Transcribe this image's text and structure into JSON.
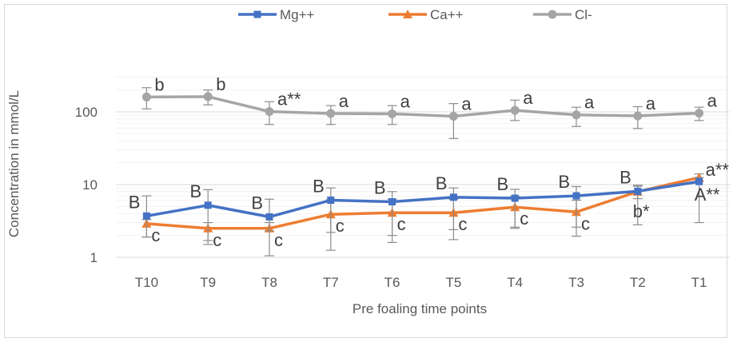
{
  "chart_data": {
    "type": "line",
    "yscale": "log",
    "ylim": [
      1,
      300
    ],
    "yticks": [
      "1",
      "10",
      "100"
    ],
    "ylabel": "Concentration in mmol/L",
    "xlabel": "Pre foaling time points",
    "categories": [
      "T10",
      "T9",
      "T8",
      "T7",
      "T6",
      "T5",
      "T4",
      "T3",
      "T2",
      "T1"
    ],
    "legend_position": "top",
    "series": [
      {
        "name": "Mg++",
        "color": "#4472c4",
        "marker": "square",
        "values": [
          3.7,
          5.2,
          3.6,
          6.1,
          5.8,
          6.7,
          6.5,
          7.0,
          8.1,
          11.0
        ],
        "error_low": [
          1.9,
          1.7,
          2.3,
          2.2,
          2.0,
          2.4,
          2.5,
          2.6,
          2.8,
          3.0
        ],
        "error_high": [
          7.0,
          8.5,
          6.3,
          9.0,
          8.0,
          9.0,
          8.6,
          9.4,
          9.8,
          12.5
        ],
        "labels": [
          "B",
          "B",
          "B",
          "B",
          "B",
          "B",
          "B",
          "B",
          "B",
          "A**"
        ]
      },
      {
        "name": "Ca++",
        "color": "#ed7d31",
        "marker": "triangle",
        "values": [
          2.9,
          2.5,
          2.5,
          3.9,
          4.1,
          4.1,
          4.9,
          4.2,
          8.0,
          12.5
        ],
        "error_low": [
          1.9,
          1.5,
          1.05,
          1.25,
          1.6,
          1.75,
          2.6,
          1.95,
          6.4,
          11.0
        ],
        "error_high": [
          3.3,
          3.0,
          3.0,
          6.2,
          6.3,
          6.3,
          6.9,
          6.1,
          9.5,
          14.0
        ],
        "labels": [
          "c",
          "c",
          "c",
          "c",
          "c",
          "c",
          "c",
          "c",
          "b*",
          "a**"
        ]
      },
      {
        "name": "Cl-",
        "color": "#a5a5a5",
        "marker": "circle",
        "values": [
          160,
          162,
          101,
          95,
          94,
          87,
          105,
          91,
          88,
          96
        ],
        "error_low": [
          110,
          125,
          67,
          67,
          67,
          43,
          76,
          63,
          59,
          76
        ],
        "error_high": [
          215,
          200,
          138,
          122,
          122,
          130,
          145,
          116,
          118,
          116
        ],
        "labels": [
          "b",
          "b",
          "a**",
          "a",
          "a",
          "a",
          "a",
          "a",
          "a",
          "a"
        ]
      }
    ]
  }
}
